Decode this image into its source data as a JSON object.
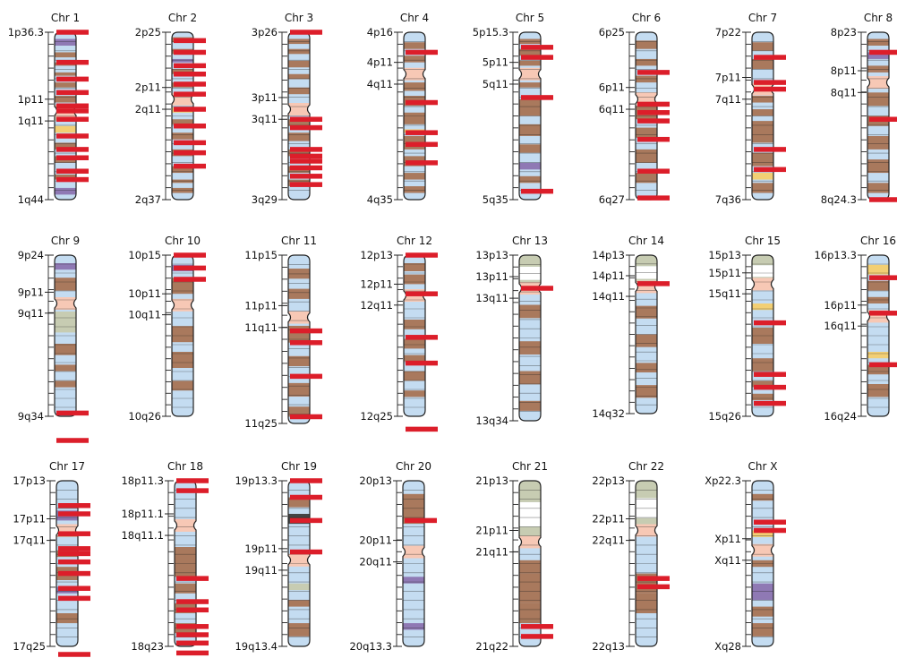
{
  "chromosomes": [
    {
      "title": "Chr 1",
      "labels": [
        "1p36.3",
        "1p11",
        "1q11",
        "1q44"
      ],
      "cen": 0.47,
      "marks": [
        0.0,
        0.18,
        0.28,
        0.36,
        0.44,
        0.47,
        0.52,
        0.62,
        0.7,
        0.75,
        0.83,
        0.88
      ]
    },
    {
      "title": "Chr 2",
      "labels": [
        "2p25",
        "2p11",
        "2q11",
        "2q37"
      ],
      "cen": 0.4,
      "marks": [
        0.05,
        0.12,
        0.2,
        0.25,
        0.31,
        0.37,
        0.46,
        0.56,
        0.66,
        0.72,
        0.8
      ]
    },
    {
      "title": "Chr 3",
      "labels": [
        "3p26",
        "3p11",
        "3q11",
        "3q29"
      ],
      "cen": 0.46,
      "marks": [
        0.0,
        0.52,
        0.57,
        0.7,
        0.74,
        0.77,
        0.81,
        0.86,
        0.91
      ]
    },
    {
      "title": "Chr 4",
      "labels": [
        "4p16",
        "4p11",
        "4q11",
        "4q35"
      ],
      "cen": 0.25,
      "marks": [
        0.12,
        0.42,
        0.6,
        0.67,
        0.78
      ]
    },
    {
      "title": "Chr 5",
      "labels": [
        "5p15.3",
        "5p11",
        "5q11",
        "5q35"
      ],
      "cen": 0.25,
      "marks": [
        0.09,
        0.15,
        0.39,
        0.95
      ]
    },
    {
      "title": "Chr 6",
      "labels": [
        "6p25",
        "6p11",
        "6q11",
        "6q27"
      ],
      "cen": 0.4,
      "marks": [
        0.24,
        0.43,
        0.48,
        0.53,
        0.64,
        0.83,
        0.99
      ]
    },
    {
      "title": "Chr 7",
      "labels": [
        "7p22",
        "7p11",
        "7q11",
        "7q36"
      ],
      "cen": 0.34,
      "marks": [
        0.15,
        0.3,
        0.34,
        0.7,
        0.82
      ]
    },
    {
      "title": "Chr 8",
      "labels": [
        "8p23",
        "8p11",
        "8q11",
        "8q24.3"
      ],
      "cen": 0.3,
      "marks": [
        0.12,
        0.52,
        1.0
      ]
    },
    {
      "title": "Chr 9",
      "labels": [
        "9p24",
        "9p11",
        "9q11",
        "9q34"
      ],
      "cen": 0.3,
      "marks": [
        0.98,
        1.15
      ]
    },
    {
      "title": "Chr 10",
      "labels": [
        "10p15",
        "10p11",
        "10q11",
        "10q26"
      ],
      "cen": 0.31,
      "marks": [
        0.0,
        0.08,
        0.15
      ]
    },
    {
      "title": "Chr 11",
      "labels": [
        "11p15",
        "11p11",
        "11q11",
        "11q25"
      ],
      "cen": 0.37,
      "marks": [
        0.45,
        0.52,
        0.72,
        0.96
      ]
    },
    {
      "title": "Chr 12",
      "labels": [
        "12p13",
        "12p11",
        "12q11",
        "12q25"
      ],
      "cen": 0.25,
      "marks": [
        0.0,
        0.24,
        0.51,
        0.67,
        1.08
      ]
    },
    {
      "title": "Chr 13",
      "labels": [
        "13p13",
        "13p11",
        "13q11",
        "13q34"
      ],
      "cen": 0.2,
      "marks": [
        0.2
      ]
    },
    {
      "title": "Chr 14",
      "labels": [
        "14p13",
        "14p11",
        "14q11",
        "14q32"
      ],
      "cen": 0.2,
      "marks": [
        0.18
      ]
    },
    {
      "title": "Chr 15",
      "labels": [
        "15p13",
        "15p11",
        "15q11",
        "15q26"
      ],
      "cen": 0.18,
      "marks": [
        0.42,
        0.74,
        0.82,
        0.92
      ]
    },
    {
      "title": "Chr 16",
      "labels": [
        "16p13.3",
        "16p11",
        "16q11",
        "16q24"
      ],
      "cen": 0.38,
      "marks": [
        0.14,
        0.36,
        0.68
      ]
    },
    {
      "title": "Chr 17",
      "labels": [
        "17p13",
        "17p11",
        "17q11",
        "17q25"
      ],
      "cen": 0.3,
      "marks": [
        0.15,
        0.2,
        0.32,
        0.41,
        0.44,
        0.49,
        0.56,
        0.65,
        0.71,
        1.13
      ]
    },
    {
      "title": "Chr 18",
      "labels": [
        "18p11.3",
        "18p11.1",
        "18q11.1",
        "18q23"
      ],
      "cen": 0.27,
      "marks": [
        0.0,
        0.06,
        0.59,
        0.73,
        0.78,
        0.88,
        0.93,
        0.98,
        1.04
      ]
    },
    {
      "title": "Chr 19",
      "labels": [
        "19p13.3",
        "19p11",
        "19q11",
        "19q13.4"
      ],
      "cen": 0.48,
      "marks": [
        0.0,
        0.1,
        0.24,
        0.43
      ]
    },
    {
      "title": "Chr 20",
      "labels": [
        "20p13",
        "20p11",
        "20q11",
        "20q13.3"
      ],
      "cen": 0.43,
      "marks": [
        0.24
      ]
    },
    {
      "title": "Chr 21",
      "labels": [
        "21p13",
        "21p11",
        "21q11",
        "21q22"
      ],
      "cen": 0.37,
      "marks": [
        0.88,
        0.94
      ]
    },
    {
      "title": "Chr 22",
      "labels": [
        "22p13",
        "22p11",
        "22q11",
        "22q13"
      ],
      "cen": 0.3,
      "marks": [
        0.59,
        0.64
      ]
    },
    {
      "title": "Chr X",
      "labels": [
        "Xp22.3",
        "Xp11",
        "Xq11",
        "Xq28"
      ],
      "cen": 0.42,
      "marks": [
        0.25,
        0.3
      ]
    }
  ],
  "colors": {
    "band_light": "#c4dcf1",
    "band_dark": "#a9795d",
    "band_purple": "#8f79b4",
    "band_gray": "#444444",
    "centromere": "#f7c8b5",
    "heterochromatin": "#c7ccb2",
    "stalk": "#ffffff",
    "band_yellow": "#f2cf74",
    "mark": "#dc1e2a",
    "outline": "#222222"
  }
}
